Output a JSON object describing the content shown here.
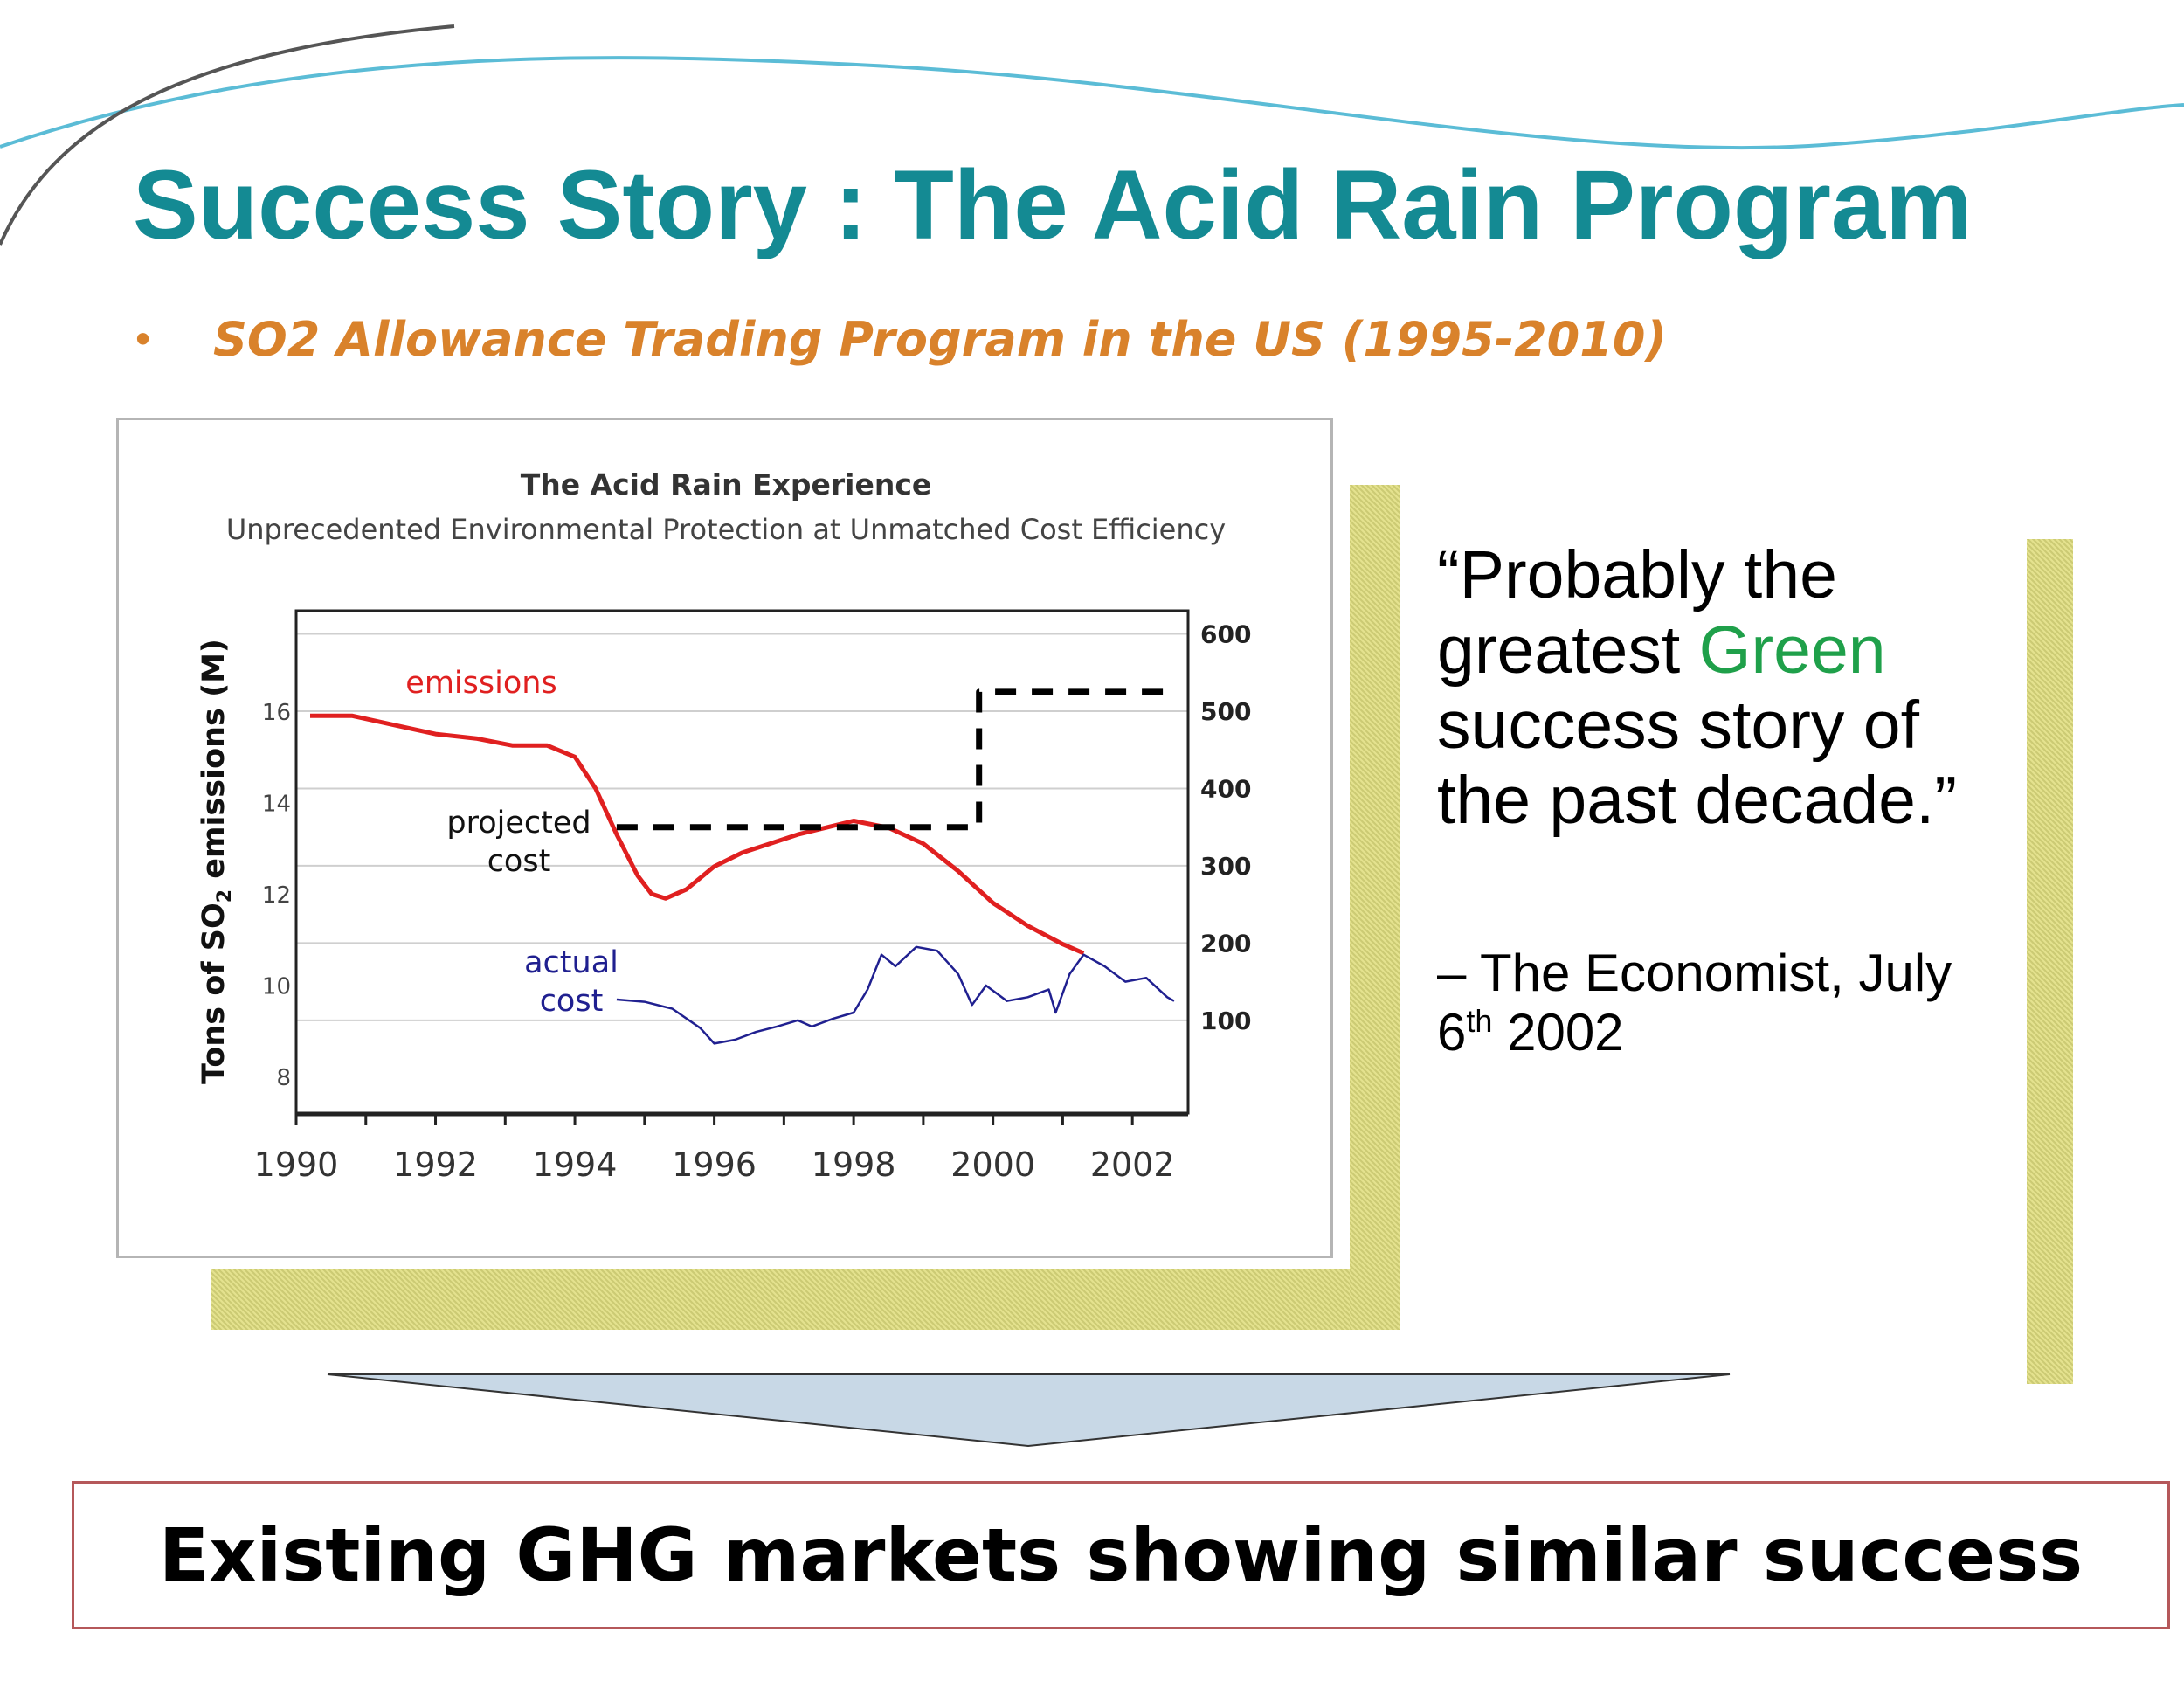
{
  "slide": {
    "title": "Success Story : The Acid Rain Program",
    "bullet": "SO2 Allowance Trading Program in the US (1995-2010)",
    "quote_part1": "“Probably the greatest ",
    "quote_green": "Green",
    "quote_part2": " success story of the past decade.”",
    "attribution_part1": "– The Economist, July 6",
    "attribution_sup": "th",
    "attribution_part2": " 2002",
    "bottom_text": "Existing GHG markets showing similar success",
    "colors": {
      "title": "#148a93",
      "bullet": "#d9822b",
      "quote_highlight": "#1fa04a",
      "bottom_box_border": "#b5585a",
      "arrow_fill": "#c8d8e6"
    }
  },
  "chart_data": {
    "type": "line",
    "title": "The Acid Rain Experience",
    "subtitle": "Unprecedented Environmental Protection at Unmatched Cost Efficiency",
    "ylabel": "Tons of SO",
    "ylabel_sub": "2",
    "ylabel_tail": " emissions (M)",
    "xlim": [
      1990,
      2002.8
    ],
    "ylim": [
      7.2,
      18.2
    ],
    "y2lim": [
      -20,
      630
    ],
    "x_ticks": [
      1990,
      1992,
      1994,
      1996,
      1998,
      2000,
      2002
    ],
    "x_tick_labels": [
      "1990",
      "1992",
      "1994",
      "1996",
      "1998",
      "2000",
      "2002"
    ],
    "y_ticks": [
      8,
      10,
      12,
      14,
      16
    ],
    "y_tick_labels": [
      "8",
      "10",
      "12",
      "14",
      "16"
    ],
    "y2_ticks": [
      100,
      200,
      300,
      400,
      500,
      600
    ],
    "y2_tick_labels": [
      "100",
      "200",
      "300",
      "400",
      "500",
      "600"
    ],
    "grid": true,
    "series": [
      {
        "name": "emissions",
        "label_lines": [
          "emissions"
        ],
        "axis": "left",
        "color": "#e02020",
        "style": "solid",
        "x": [
          1990.2,
          1990.8,
          1991.4,
          1992.0,
          1992.6,
          1993.1,
          1993.6,
          1994.0,
          1994.3,
          1994.6,
          1994.9,
          1995.1,
          1995.3,
          1995.6,
          1996.0,
          1996.4,
          1996.8,
          1997.2,
          1997.6,
          1998.0,
          1998.5,
          1999.0,
          1999.5,
          2000.0,
          2000.5,
          2001.0,
          2001.3
        ],
        "y": [
          15.9,
          15.9,
          15.7,
          15.5,
          15.4,
          15.25,
          15.25,
          15.0,
          14.3,
          13.3,
          12.4,
          12.0,
          11.9,
          12.1,
          12.6,
          12.9,
          13.1,
          13.3,
          13.45,
          13.6,
          13.45,
          13.1,
          12.5,
          11.8,
          11.3,
          10.9,
          10.7
        ]
      },
      {
        "name": "projected cost",
        "label_lines": [
          "projected",
          "cost"
        ],
        "axis": "right",
        "color": "#000000",
        "style": "dashed",
        "x": [
          1994.6,
          1999.8,
          1999.8,
          2002.6
        ],
        "y": [
          350,
          350,
          525,
          525
        ]
      },
      {
        "name": "actual cost",
        "label_lines": [
          "actual",
          "cost"
        ],
        "axis": "right",
        "color": "#202090",
        "style": "solid",
        "x": [
          1994.6,
          1995.0,
          1995.4,
          1995.8,
          1996.0,
          1996.3,
          1996.6,
          1996.9,
          1997.2,
          1997.4,
          1997.7,
          1998.0,
          1998.2,
          1998.4,
          1998.6,
          1998.9,
          1999.2,
          1999.5,
          1999.7,
          1999.9,
          2000.2,
          2000.5,
          2000.8,
          2000.9,
          2001.1,
          2001.3,
          2001.6,
          2001.9,
          2002.2,
          2002.5,
          2002.6
        ],
        "y": [
          127,
          124,
          115,
          90,
          70,
          75,
          85,
          92,
          100,
          92,
          102,
          110,
          140,
          185,
          170,
          195,
          190,
          160,
          120,
          145,
          125,
          130,
          140,
          110,
          160,
          185,
          170,
          150,
          155,
          130,
          125
        ]
      }
    ]
  }
}
